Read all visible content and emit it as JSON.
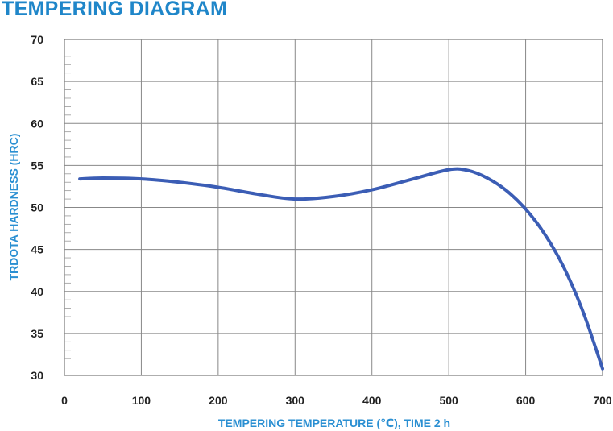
{
  "chart_data": {
    "type": "line",
    "title": "TEMPERING DIAGRAM",
    "xlabel": "TEMPERING TEMPERATURE (℃), TIME 2 h",
    "ylabel": "TRDOTA HARDNESS (HRC)",
    "xlim": [
      0,
      700
    ],
    "ylim": [
      30,
      70
    ],
    "x_ticks": [
      0,
      100,
      200,
      300,
      400,
      500,
      600,
      700
    ],
    "y_ticks": [
      30,
      35,
      40,
      45,
      50,
      55,
      60,
      65,
      70
    ],
    "grid": true,
    "series": [
      {
        "color": "#3b5db5",
        "x": [
          20,
          50,
          100,
          150,
          200,
          250,
          300,
          350,
          400,
          450,
          500,
          525,
          550,
          575,
          600,
          625,
          650,
          675,
          700
        ],
        "y": [
          53.4,
          53.5,
          53.4,
          53.0,
          52.4,
          51.6,
          51.0,
          51.3,
          52.1,
          53.3,
          54.5,
          54.4,
          53.5,
          52.0,
          49.8,
          46.8,
          42.8,
          37.5,
          30.8
        ]
      }
    ]
  }
}
